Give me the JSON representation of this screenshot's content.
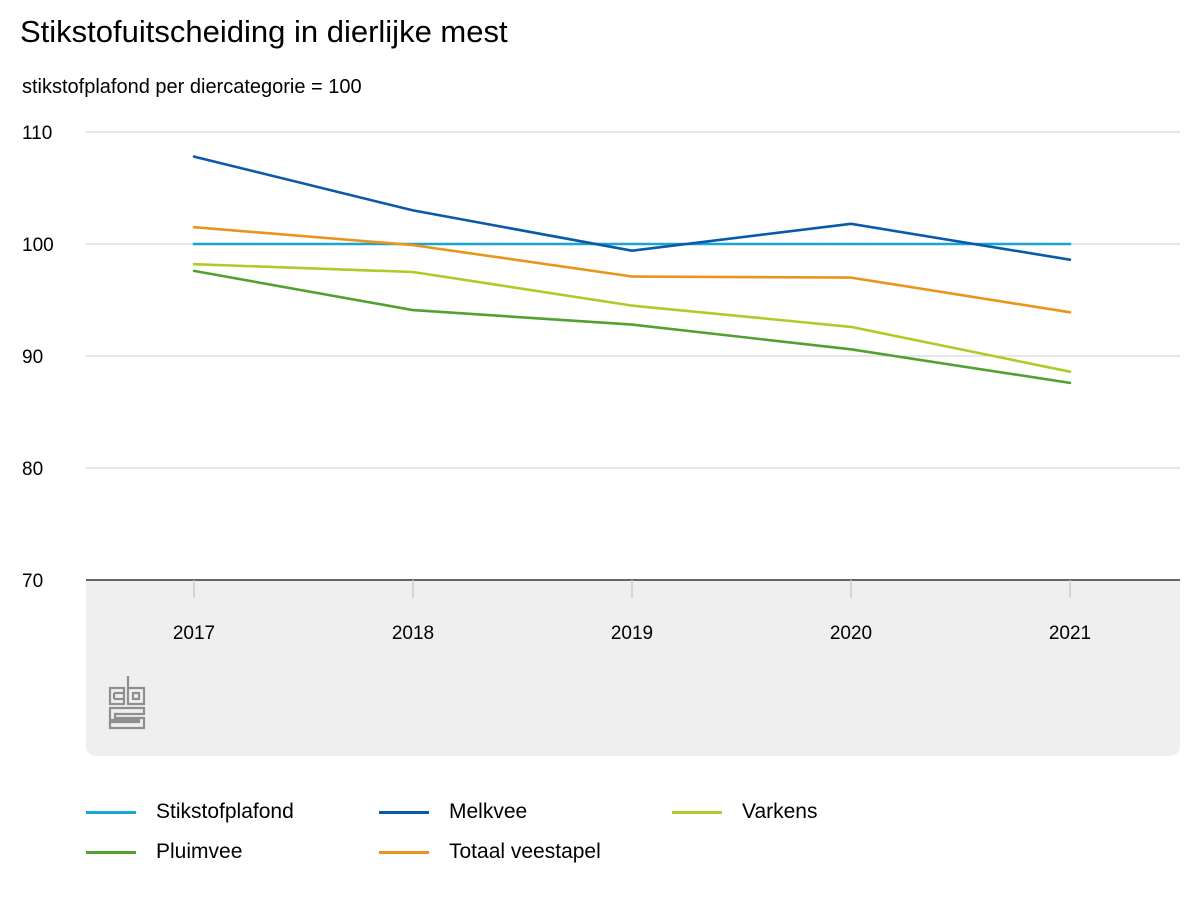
{
  "header": {
    "title": "Stikstofuitscheiding in dierlijke mest",
    "subtitle": "stikstofplafond per diercategorie = 100"
  },
  "logo": {
    "icon": "cbs-logo-icon"
  },
  "chart_data": {
    "type": "line",
    "title": "Stikstofuitscheiding in dierlijke mest",
    "subtitle": "stikstofplafond per diercategorie = 100",
    "xlabel": "",
    "ylabel": "",
    "categories": [
      "2017",
      "2018",
      "2019",
      "2020",
      "2021"
    ],
    "ylim": [
      70,
      110
    ],
    "yticks": [
      "110",
      "100",
      "90",
      "80",
      "70"
    ],
    "grid": true,
    "legend_position": "bottom",
    "series": [
      {
        "name": "Stikstofplafond",
        "color": "#1aa3d4",
        "values": [
          100,
          100,
          100,
          100,
          100
        ]
      },
      {
        "name": "Melkvee",
        "color": "#0a5aa8",
        "values": [
          107.8,
          103.0,
          99.4,
          101.8,
          98.6
        ]
      },
      {
        "name": "Varkens",
        "color": "#afcb27",
        "values": [
          98.2,
          97.5,
          94.5,
          92.6,
          88.6
        ]
      },
      {
        "name": "Pluimvee",
        "color": "#53a031",
        "values": [
          97.6,
          94.1,
          92.8,
          90.6,
          87.6
        ]
      },
      {
        "name": "Totaal veestapel",
        "color": "#e8951e",
        "values": [
          101.5,
          99.9,
          97.1,
          97.0,
          93.9
        ]
      }
    ]
  }
}
